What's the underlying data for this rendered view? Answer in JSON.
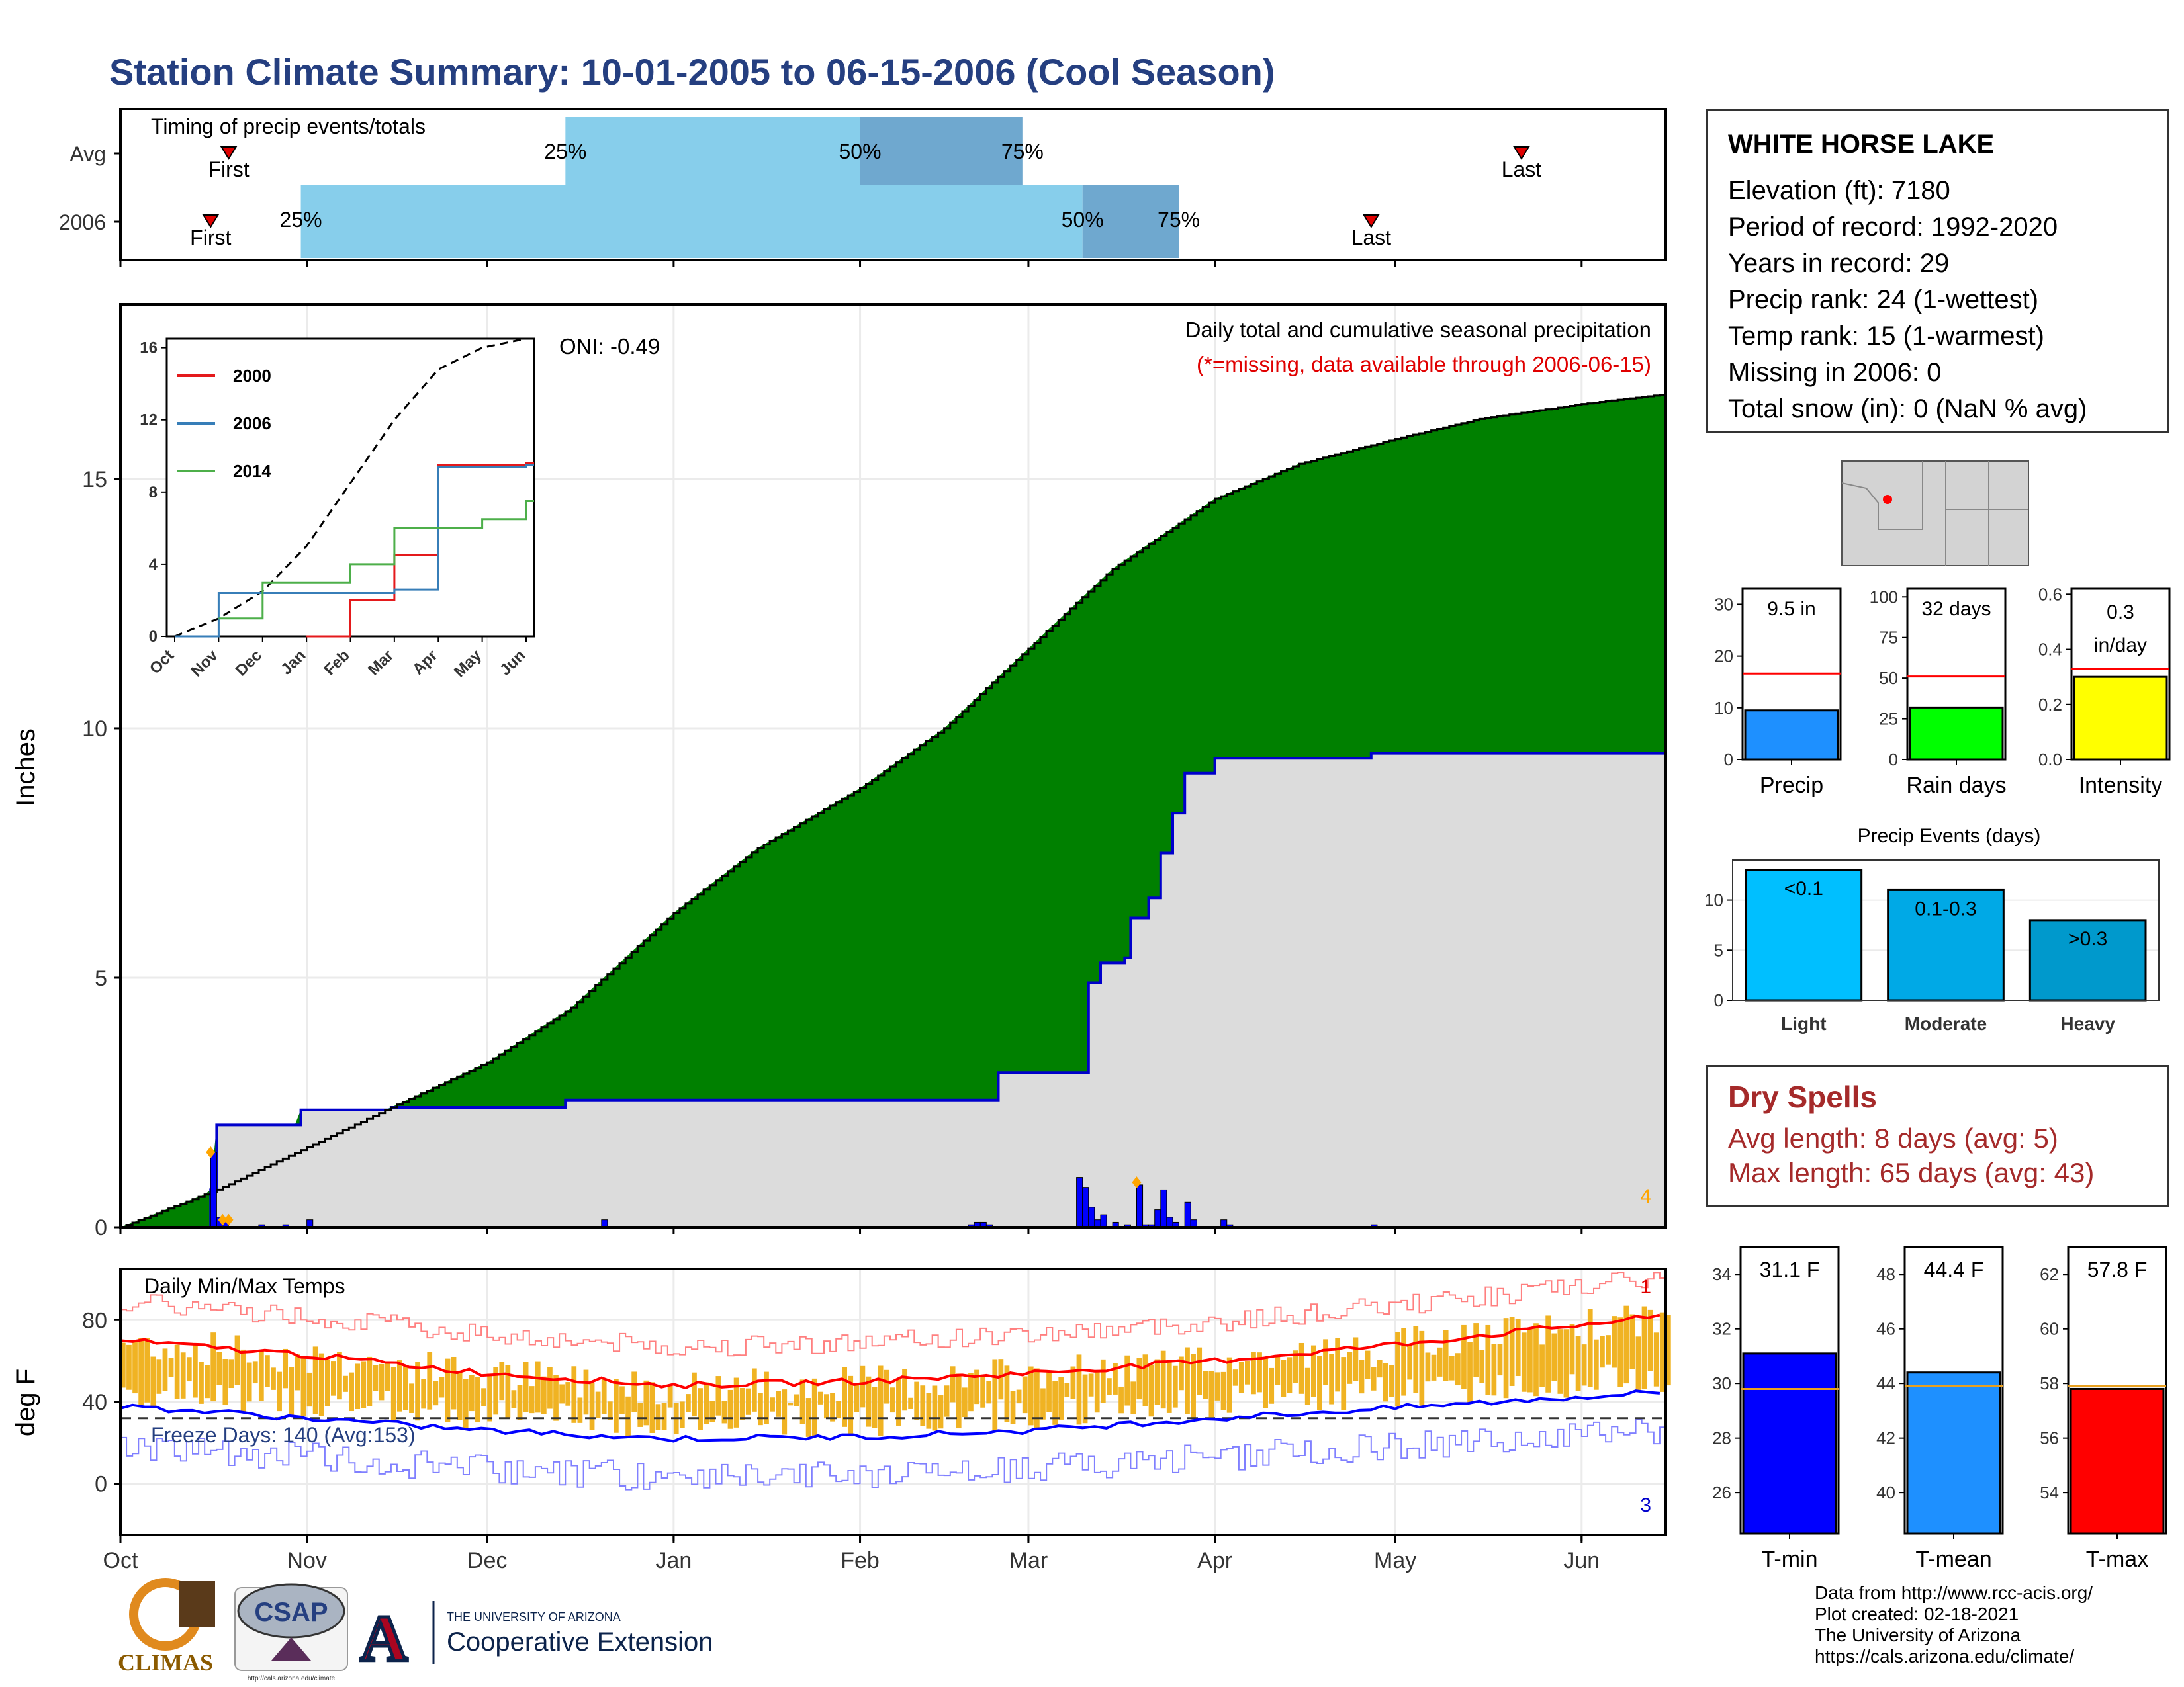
{
  "title": "Station Climate Summary: 10-01-2005 to 06-15-2006 (Cool Season)",
  "colors": {
    "title": "#253f80",
    "cumulative_fill": "#8b5a00",
    "wetter_fill": "#008000",
    "avg_area": "#dcdcdc",
    "precip_line": "#0000cc",
    "bar_light": "#87ceeb",
    "bar_dark": "#6fa8cf",
    "temp_band": "#f0b323",
    "tmax_avg": "#ff0000",
    "tmin_avg": "#0000ff",
    "freeze_text": "#253f80",
    "dry_text": "#a52a2a"
  },
  "timing": {
    "title": "Timing of precip events/totals",
    "rows": [
      {
        "label": "Avg",
        "first": "First",
        "last": "Last",
        "first_date": "2005-10-19",
        "p25": "2005-12-14",
        "p50": "2006-02-01",
        "p75": "2006-02-28",
        "last_date": "2006-05-22",
        "p25_label": "25%",
        "p50_label": "50%",
        "p75_label": "75%"
      },
      {
        "label": "2006",
        "first": "First",
        "last": "Last",
        "first_date": "2005-10-16",
        "p25": "2005-10-31",
        "p50": "2006-03-10",
        "p75": "2006-03-26",
        "last_date": "2006-04-27",
        "p25_label": "25%",
        "p50_label": "50%",
        "p75_label": "75%"
      }
    ]
  },
  "precip_panel": {
    "ylabel": "Inches",
    "title": "Daily total and cumulative seasonal precipitation",
    "subtitle": "(*=missing, data available through 2006-06-15)",
    "oni": "ONI: -0.49",
    "corner_count": "4",
    "yticks": [
      "0",
      "5",
      "10",
      "15"
    ]
  },
  "inset": {
    "legend": [
      "2000",
      "2006",
      "2014"
    ],
    "legend_colors": [
      "#e41a1c",
      "#377eb8",
      "#4daf4a"
    ],
    "yticks": [
      "0",
      "4",
      "8",
      "12",
      "16"
    ],
    "xticks": [
      "Oct",
      "Nov",
      "Dec",
      "Jan",
      "Feb",
      "Mar",
      "Apr",
      "May",
      "Jun"
    ]
  },
  "temp_panel": {
    "ylabel": "deg F",
    "title": "Daily Min/Max Temps",
    "freeze": "Freeze Days: 140 (Avg:153)",
    "count_max": "1",
    "count_min": "3",
    "yticks": [
      "0",
      "40",
      "80"
    ]
  },
  "xaxis": [
    "Oct",
    "Nov",
    "Dec",
    "Jan",
    "Feb",
    "Mar",
    "Apr",
    "May",
    "Jun"
  ],
  "station": {
    "name": "WHITE HORSE LAKE",
    "lines": [
      "Elevation (ft): 7180",
      "Period of record: 1992-2020",
      "Years in record: 29",
      "Precip rank: 24 (1-wettest)",
      "Temp rank: 15 (1-warmest)",
      "Missing in 2006: 0",
      "Total snow (in): 0 (NaN % avg)"
    ]
  },
  "mini_bars": [
    {
      "xlabel": "Precip",
      "label": "9.5 in",
      "yticks": [
        "0",
        "10",
        "20",
        "30"
      ],
      "ymax": 33,
      "value": 9.5,
      "avg": 16.6,
      "color": "#1e90ff"
    },
    {
      "xlabel": "Rain days",
      "label": "32 days",
      "yticks": [
        "0",
        "25",
        "50",
        "75",
        "100"
      ],
      "ymax": 105,
      "value": 32,
      "avg": 51,
      "color": "#00ff00"
    },
    {
      "xlabel": "Intensity",
      "label_lines": [
        "0.3",
        "in/day"
      ],
      "yticks": [
        "0.0",
        "0.2",
        "0.4",
        "0.6"
      ],
      "ymax": 0.62,
      "value": 0.3,
      "avg": 0.33,
      "color": "#ffff00"
    }
  ],
  "events": {
    "title": "Precip Events (days)",
    "categories": [
      "Light",
      "Moderate",
      "Heavy"
    ],
    "labels": [
      "<0.1",
      "0.1-0.3",
      ">0.3"
    ],
    "values": [
      13,
      11,
      8
    ],
    "colors": [
      "#00bfff",
      "#00a9e6",
      "#0099cc"
    ],
    "yticks": [
      "0",
      "5",
      "10"
    ]
  },
  "dry_spells": {
    "title": "Dry Spells",
    "lines": [
      "Avg length: 8 days (avg: 5)",
      "Max length: 65 days (avg: 43)"
    ]
  },
  "temp_bars": [
    {
      "xlabel": "T-min",
      "label": "31.1 F",
      "yticks": [
        "26",
        "28",
        "30",
        "32",
        "34"
      ],
      "ymin": 24.5,
      "ymax": 35,
      "value": 31.1,
      "avg": 29.8,
      "color": "#0000ff"
    },
    {
      "xlabel": "T-mean",
      "label": "44.4 F",
      "yticks": [
        "40",
        "42",
        "44",
        "46",
        "48"
      ],
      "ymin": 38.5,
      "ymax": 49,
      "value": 44.4,
      "avg": 43.9,
      "color": "#1e90ff"
    },
    {
      "xlabel": "T-max",
      "label": "57.8 F",
      "yticks": [
        "54",
        "56",
        "58",
        "60",
        "62"
      ],
      "ymin": 52.5,
      "ymax": 63,
      "value": 57.8,
      "avg": 57.9,
      "color": "#ff0000"
    }
  ],
  "footer": [
    "Data from http://www.rcc-acis.org/",
    "Plot created: 02-18-2021",
    "The University of Arizona",
    "https://cals.arizona.edu/climate/"
  ],
  "logos": {
    "climas": "CLIMAS",
    "csap": "CSAP",
    "csap_url": "http://cals.arizona.edu/climate",
    "ua_small": "THE UNIVERSITY OF ARIZONA",
    "ua_big": "Cooperative Extension",
    "ua_mark": "A"
  },
  "chart_data": [
    {
      "type": "area",
      "name": "cumulative_2006",
      "x": [
        "2005-10-01",
        "2005-10-16",
        "2005-10-17",
        "2005-10-31",
        "2005-11-15",
        "2005-12-14",
        "2006-02-23",
        "2006-02-24",
        "2006-03-10",
        "2006-03-11",
        "2006-03-13",
        "2006-03-17",
        "2006-03-18",
        "2006-03-21",
        "2006-03-23",
        "2006-03-25",
        "2006-03-27",
        "2006-04-01",
        "2006-04-27",
        "2006-06-15"
      ],
      "y": [
        0.0,
        0.75,
        2.05,
        2.35,
        2.4,
        2.55,
        2.55,
        3.1,
        3.1,
        4.9,
        5.3,
        5.4,
        6.2,
        6.6,
        7.5,
        8.3,
        9.1,
        9.4,
        9.5,
        9.5
      ],
      "ylim": [
        0,
        18.5
      ]
    },
    {
      "type": "area",
      "name": "average_cumulative",
      "x": [
        "2005-10-01",
        "2005-10-16",
        "2005-10-17",
        "2005-11-01",
        "2005-11-15",
        "2005-12-01",
        "2005-12-15",
        "2006-01-01",
        "2006-01-15",
        "2006-02-01",
        "2006-02-15",
        "2006-03-01",
        "2006-03-15",
        "2006-04-01",
        "2006-04-15",
        "2006-05-01",
        "2006-05-15",
        "2006-06-01",
        "2006-06-15"
      ],
      "y": [
        0.0,
        0.7,
        0.75,
        1.6,
        2.4,
        3.3,
        4.4,
        6.3,
        7.6,
        8.8,
        10.0,
        11.6,
        13.2,
        14.6,
        15.3,
        15.8,
        16.2,
        16.5,
        16.7
      ]
    },
    {
      "type": "bar",
      "name": "daily_precip",
      "x": [
        "2005-10-16",
        "2005-10-17",
        "2005-10-18",
        "2005-10-24",
        "2005-10-28",
        "2005-11-01",
        "2005-12-20",
        "2006-02-19",
        "2006-02-20",
        "2006-02-21",
        "2006-02-22",
        "2006-03-09",
        "2006-03-10",
        "2006-03-11",
        "2006-03-12",
        "2006-03-13",
        "2006-03-15",
        "2006-03-17",
        "2006-03-19",
        "2006-03-20",
        "2006-03-21",
        "2006-03-22",
        "2006-03-23",
        "2006-03-24",
        "2006-03-25",
        "2006-03-27",
        "2006-03-28",
        "2006-04-02",
        "2006-04-03",
        "2006-04-27"
      ],
      "y": [
        1.5,
        0.2,
        0.15,
        0.05,
        0.05,
        0.15,
        0.15,
        0.05,
        0.1,
        0.1,
        0.05,
        1.0,
        0.8,
        0.4,
        0.15,
        0.25,
        0.1,
        0.05,
        0.85,
        0.05,
        0.05,
        0.35,
        0.75,
        0.2,
        0.1,
        0.5,
        0.15,
        0.15,
        0.05,
        0.05
      ]
    },
    {
      "type": "line",
      "name": "inset_cumulative",
      "series": [
        {
          "name": "2000",
          "x": [
            "Jan",
            "Feb",
            "Mar",
            "Apr",
            "Jun"
          ],
          "y": [
            0,
            2,
            4.5,
            9.5,
            9.6
          ]
        },
        {
          "name": "2006",
          "x": [
            "Oct",
            "Nov",
            "Mar",
            "Apr",
            "Jun"
          ],
          "y": [
            0,
            2.4,
            2.6,
            9.4,
            9.5
          ]
        },
        {
          "name": "2014",
          "x": [
            "Nov",
            "Dec",
            "Feb",
            "Mar",
            "May",
            "Jun"
          ],
          "y": [
            1.0,
            3.0,
            4.0,
            6.0,
            6.5,
            7.5
          ]
        }
      ],
      "ylim": [
        0,
        16.5
      ]
    },
    {
      "type": "line",
      "name": "temperatures",
      "ylim": [
        -25,
        105
      ],
      "series": [
        {
          "name": "avg_tmax",
          "x": [
            "2005-10-01",
            "2005-11-01",
            "2005-12-01",
            "2006-01-01",
            "2006-02-01",
            "2006-03-01",
            "2006-04-01",
            "2006-05-01",
            "2006-06-15"
          ],
          "y": [
            70,
            63,
            54,
            48,
            50,
            54,
            60,
            68,
            82
          ]
        },
        {
          "name": "avg_tmin",
          "x": [
            "2005-10-01",
            "2005-11-01",
            "2005-12-01",
            "2006-01-01",
            "2006-02-01",
            "2006-03-01",
            "2006-04-01",
            "2006-05-01",
            "2006-06-15"
          ],
          "y": [
            38,
            32,
            26,
            22,
            23,
            26,
            32,
            37,
            45
          ]
        }
      ],
      "freeze_line": 32
    }
  ]
}
